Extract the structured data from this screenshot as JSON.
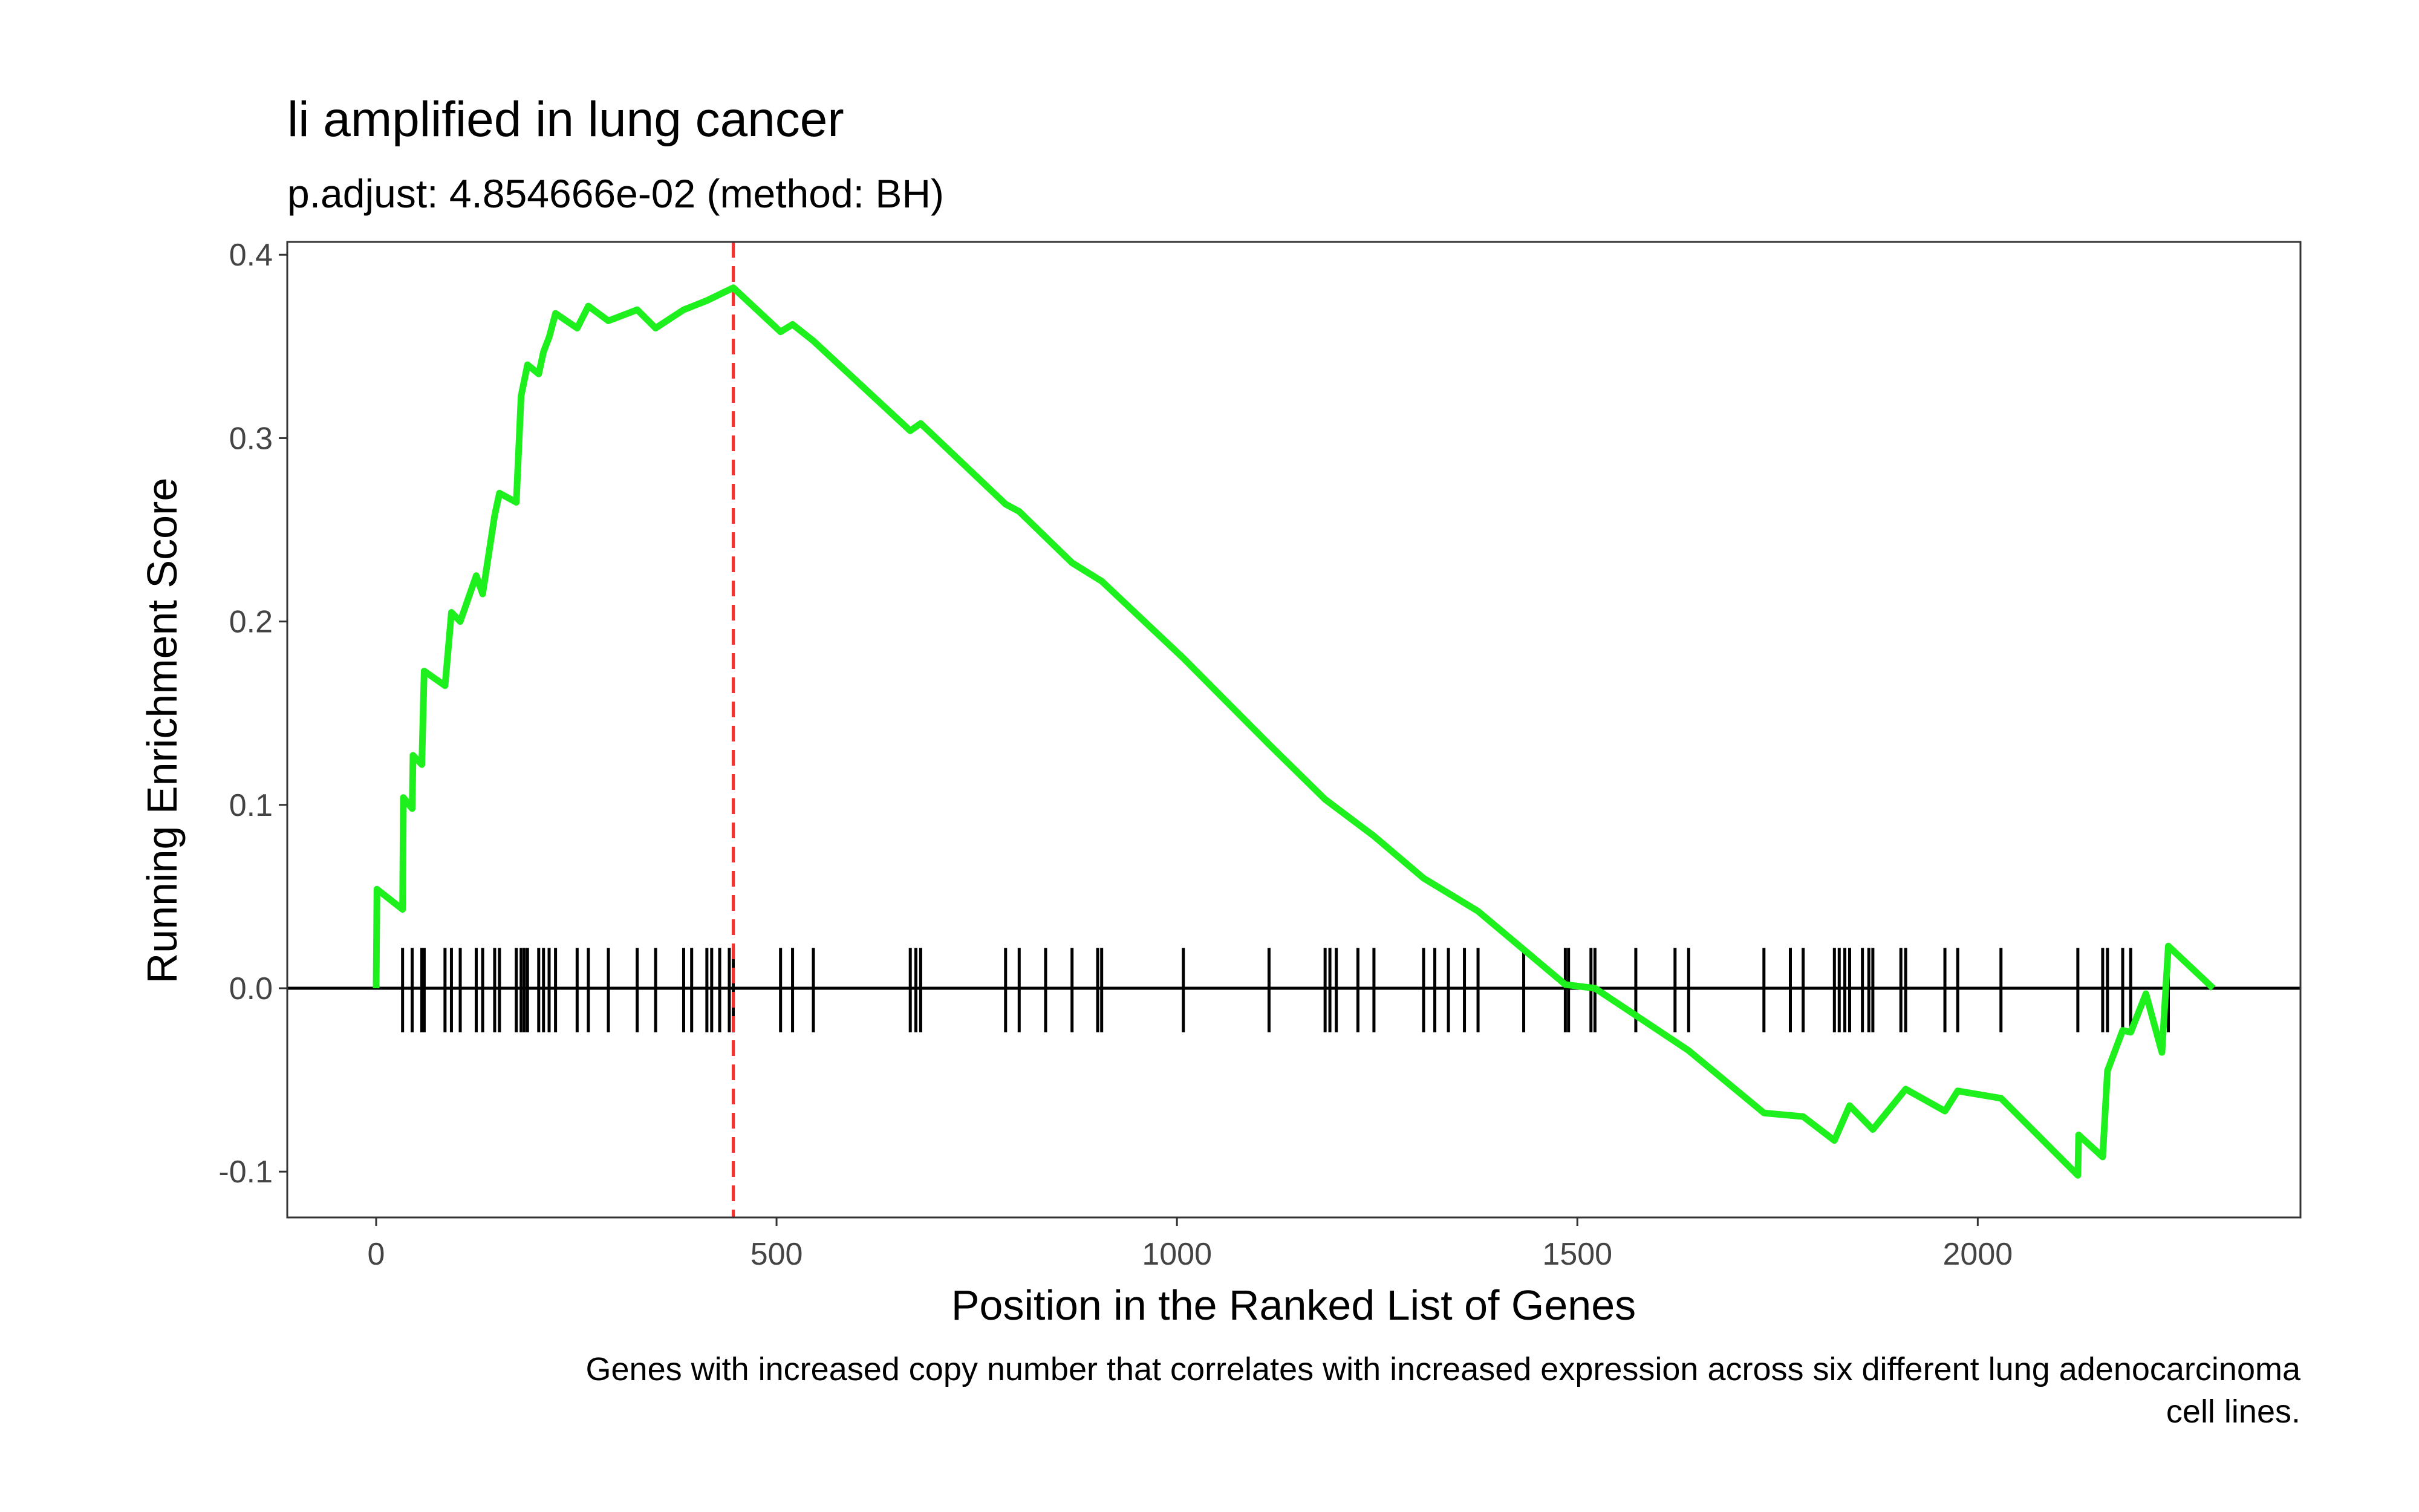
{
  "chart_data": {
    "type": "line",
    "title": "li amplified in lung cancer",
    "subtitle": "p.adjust: 4.854666e-02 (method: BH)",
    "xlabel": "Position in the Ranked List of Genes",
    "ylabel": "Running Enrichment Score",
    "caption": [
      "Genes with increased copy number that correlates with increased expression across six different lung adenocarcinoma",
      "cell lines."
    ],
    "xlim": [
      -111,
      2403
    ],
    "ylim": [
      -0.125,
      0.407
    ],
    "xticks": [
      0,
      500,
      1000,
      1500,
      2000
    ],
    "yticks": [
      -0.1,
      {
        "value": 0,
        "label": "0.0"
      },
      0.1,
      0.2,
      0.3,
      0.4
    ],
    "grid": false,
    "series": [
      {
        "color": "#1ef01e",
        "x": [
          0,
          1,
          33,
          34,
          45,
          46,
          57,
          60,
          86,
          94,
          105,
          125,
          133,
          148,
          154,
          175,
          181,
          189,
          203,
          209,
          216,
          224,
          251,
          265,
          290,
          326,
          349,
          384,
          413,
          446,
          505,
          520,
          546,
          667,
          680,
          786,
          803,
          869,
          906,
          1008,
          1115,
          1185,
          1246,
          1308,
          1376,
          1485,
          1522,
          1639,
          1733,
          1782,
          1821,
          1840,
          1869,
          1910,
          1959,
          1975,
          2029,
          2125,
          2126,
          2156,
          2162,
          2181,
          2191,
          2210,
          2230,
          2238,
          2294
        ],
        "values": [
          0,
          0.054,
          0.043,
          0.104,
          0.098,
          0.127,
          0.122,
          0.173,
          0.165,
          0.205,
          0.2,
          0.225,
          0.215,
          0.258,
          0.27,
          0.265,
          0.323,
          0.34,
          0.335,
          0.347,
          0.355,
          0.368,
          0.36,
          0.372,
          0.364,
          0.37,
          0.36,
          0.37,
          0.375,
          0.382,
          0.358,
          0.362,
          0.353,
          0.304,
          0.308,
          0.264,
          0.26,
          0.232,
          0.222,
          0.18,
          0.133,
          0.103,
          0.083,
          0.06,
          0.042,
          0.002,
          0,
          -0.034,
          -0.068,
          -0.07,
          -0.083,
          -0.064,
          -0.077,
          -0.055,
          -0.067,
          -0.056,
          -0.06,
          -0.102,
          -0.08,
          -0.092,
          -0.045,
          -0.023,
          -0.024,
          -0.003,
          -0.035,
          0.023,
          0
        ]
      }
    ],
    "hits": [
      33,
      45,
      57,
      60,
      86,
      94,
      105,
      125,
      133,
      148,
      154,
      175,
      181,
      185,
      189,
      203,
      209,
      216,
      224,
      251,
      265,
      290,
      326,
      349,
      384,
      394,
      413,
      419,
      429,
      441,
      446,
      505,
      520,
      546,
      667,
      674,
      680,
      786,
      803,
      836,
      869,
      901,
      906,
      1008,
      1115,
      1185,
      1191,
      1199,
      1226,
      1246,
      1308,
      1322,
      1339,
      1359,
      1376,
      1433,
      1485,
      1489,
      1517,
      1522,
      1573,
      1622,
      1639,
      1733,
      1766,
      1782,
      1821,
      1827,
      1834,
      1840,
      1856,
      1864,
      1869,
      1904,
      1910,
      1959,
      1975,
      2029,
      2125,
      2156,
      2162,
      2181,
      2191,
      2238
    ],
    "hit_color": "#000000",
    "vline": 446,
    "vline_color": "#ee3333",
    "hline": 0
  }
}
